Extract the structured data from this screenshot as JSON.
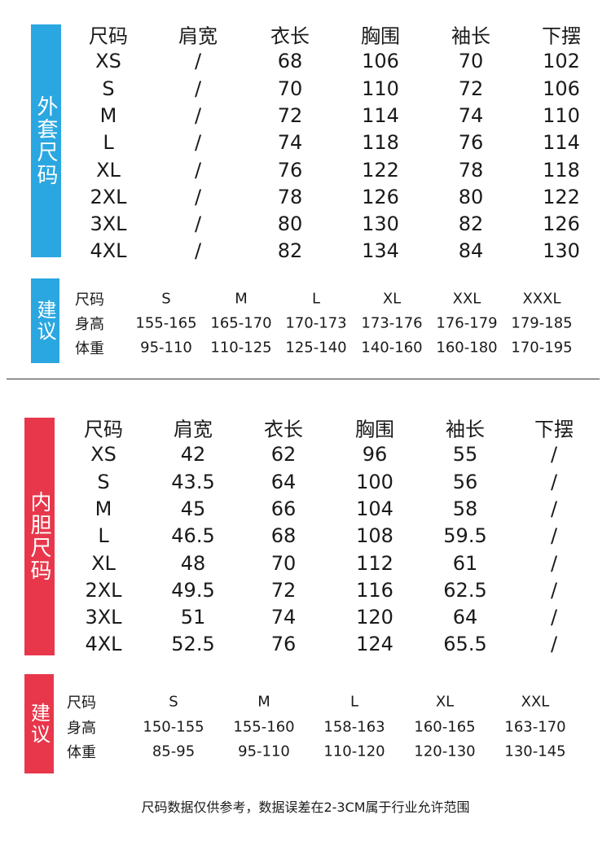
{
  "colors": {
    "coat": "#2aa7e1",
    "liner": "#e8374b"
  },
  "coat": {
    "label": "外套尺码",
    "headers": [
      "尺码",
      "肩宽",
      "衣长",
      "胸围",
      "袖长",
      "下摆"
    ],
    "rows": [
      [
        "XS",
        "/",
        "68",
        "106",
        "70",
        "102"
      ],
      [
        "S",
        "/",
        "70",
        "110",
        "72",
        "106"
      ],
      [
        "M",
        "/",
        "72",
        "114",
        "74",
        "110"
      ],
      [
        "L",
        "/",
        "74",
        "118",
        "76",
        "114"
      ],
      [
        "XL",
        "/",
        "76",
        "122",
        "78",
        "118"
      ],
      [
        "2XL",
        "/",
        "78",
        "126",
        "80",
        "122"
      ],
      [
        "3XL",
        "/",
        "80",
        "130",
        "82",
        "126"
      ],
      [
        "4XL",
        "/",
        "82",
        "134",
        "84",
        "130"
      ]
    ]
  },
  "coat_suggest": {
    "label": "建议",
    "rows": [
      [
        "尺码",
        "S",
        "M",
        "L",
        "XL",
        "XXL",
        "XXXL"
      ],
      [
        "身高",
        "155-165",
        "165-170",
        "170-173",
        "173-176",
        "176-179",
        "179-185"
      ],
      [
        "体重",
        "95-110",
        "110-125",
        "125-140",
        "140-160",
        "160-180",
        "170-195"
      ]
    ]
  },
  "liner": {
    "label": "内胆尺码",
    "headers": [
      "尺码",
      "肩宽",
      "衣长",
      "胸围",
      "袖长",
      "下摆"
    ],
    "rows": [
      [
        "XS",
        "42",
        "62",
        "96",
        "55",
        "/"
      ],
      [
        "S",
        "43.5",
        "64",
        "100",
        "56",
        "/"
      ],
      [
        "M",
        "45",
        "66",
        "104",
        "58",
        "/"
      ],
      [
        "L",
        "46.5",
        "68",
        "108",
        "59.5",
        "/"
      ],
      [
        "XL",
        "48",
        "70",
        "112",
        "61",
        "/"
      ],
      [
        "2XL",
        "49.5",
        "72",
        "116",
        "62.5",
        "/"
      ],
      [
        "3XL",
        "51",
        "74",
        "120",
        "64",
        "/"
      ],
      [
        "4XL",
        "52.5",
        "76",
        "124",
        "65.5",
        "/"
      ]
    ]
  },
  "liner_suggest": {
    "label": "建议",
    "rows": [
      [
        "尺码",
        "S",
        "M",
        "L",
        "XL",
        "XXL"
      ],
      [
        "身高",
        "150-155",
        "155-160",
        "158-163",
        "160-165",
        "163-170"
      ],
      [
        "体重",
        "85-95",
        "95-110",
        "110-120",
        "120-130",
        "130-145"
      ]
    ]
  },
  "footer": "尺码数据仅供参考，数据误差在2-3CM属于行业允许范围"
}
